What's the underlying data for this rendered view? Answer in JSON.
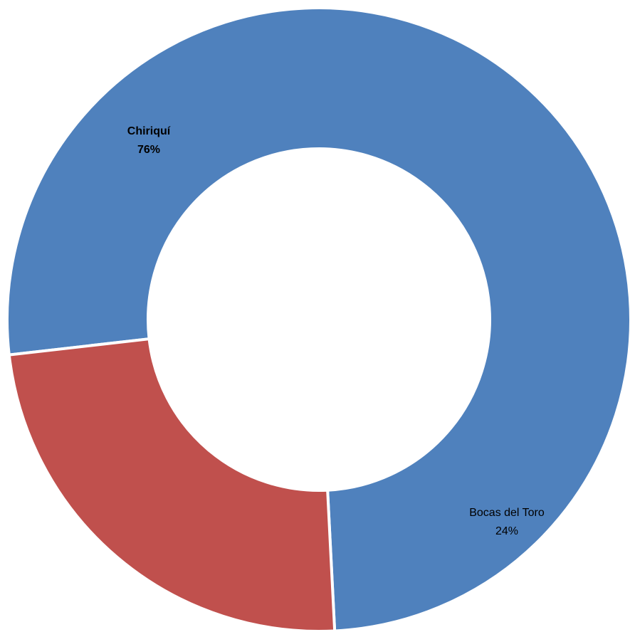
{
  "chart_data": {
    "type": "pie",
    "variant": "donut",
    "slices": [
      {
        "name": "Chiriquí",
        "value": 76,
        "percent_label": "76%",
        "color": "#4F81BD",
        "label_bold": true
      },
      {
        "name": "Bocas del Toro",
        "value": 24,
        "percent_label": "24%",
        "color": "#C0504D",
        "label_bold": false
      }
    ],
    "title": "",
    "legend": "none",
    "slice_border_color": "#ffffff"
  }
}
